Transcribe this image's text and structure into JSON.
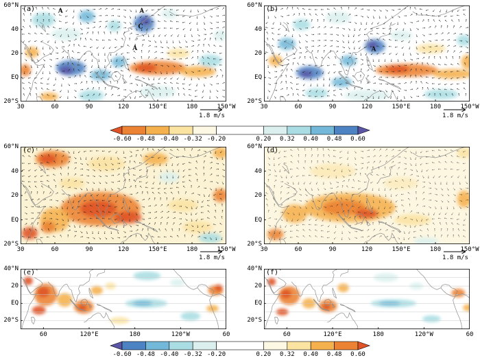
{
  "figure": {
    "scale_label": "1.8 m/s",
    "background": "#ffffff"
  },
  "chart_data": {
    "type": "heatmap",
    "title": "",
    "description": "Six-panel (a-f) correlation/regression maps over the Indo-Pacific: shaded anomalies with wind-vector overlays (a-d), SST-type shading (e-f), and two diverging colorbars",
    "legend_position": "horizontal colorbars below panel rows",
    "grid": "latitude lines on panels e and f",
    "axes": {
      "wide": {
        "lon0": 30,
        "lon1": 210,
        "lat0": -20,
        "lat1": 60,
        "x_ticks": [
          {
            "v": 30,
            "l": "30"
          },
          {
            "v": 60,
            "l": "60"
          },
          {
            "v": 90,
            "l": "90"
          },
          {
            "v": 120,
            "l": "120"
          },
          {
            "v": 150,
            "l": "150°E"
          },
          {
            "v": 180,
            "l": "180"
          },
          {
            "v": 210,
            "l": "150°W"
          }
        ],
        "y_ticks": [
          {
            "v": 60,
            "l": "60°N"
          },
          {
            "v": 40,
            "l": "40"
          },
          {
            "v": 20,
            "l": "20"
          },
          {
            "v": 0,
            "l": "EQ"
          },
          {
            "v": -20,
            "l": "20°S"
          }
        ]
      },
      "global": {
        "lon0": 30,
        "lon1": 300,
        "lat0": -30,
        "lat1": 40,
        "x_ticks": [
          {
            "v": 60,
            "l": "60"
          },
          {
            "v": 120,
            "l": "120°E"
          },
          {
            "v": 180,
            "l": "180"
          },
          {
            "v": 240,
            "l": "120°W"
          },
          {
            "v": 300,
            "l": "60"
          }
        ],
        "y_ticks": [
          {
            "v": 40,
            "l": "40°N"
          },
          {
            "v": 20,
            "l": "20"
          },
          {
            "v": 0,
            "l": "EQ"
          },
          {
            "v": -20,
            "l": "20°S"
          }
        ]
      }
    },
    "colorbars": [
      {
        "ticks": [
          "-0.60",
          "-0.48",
          "-0.40",
          "-0.32",
          "-0.20",
          "0.20",
          "0.32",
          "0.40",
          "0.48",
          "0.60"
        ],
        "arrow_left": "#df5327",
        "segments": [
          "#ec8233",
          "#f5b14e",
          "#fbe3a2",
          "#fdf8e4",
          "#ffffff",
          "#dbf0ee",
          "#a9dde3",
          "#73b8d8",
          "#4d82c3"
        ],
        "arrow_right": "#5a55a5",
        "weights": [
          1,
          1,
          1,
          1,
          2,
          1,
          1,
          1,
          1
        ]
      },
      {
        "ticks": [
          "-0.60",
          "-0.48",
          "-0.40",
          "-0.32",
          "-0.20",
          "0.20",
          "0.32",
          "0.40",
          "0.48",
          "0.60"
        ],
        "arrow_left": "#5a55a5",
        "segments": [
          "#4d82c3",
          "#73b8d8",
          "#a9dde3",
          "#dbf0ee",
          "#ffffff",
          "#fdf8e4",
          "#fbe3a2",
          "#f5b14e",
          "#ec8233"
        ],
        "arrow_right": "#df5327",
        "weights": [
          1,
          1,
          1,
          1,
          2,
          1,
          1,
          1,
          1
        ]
      }
    ],
    "panels": [
      {
        "id": "a",
        "label": "(a)",
        "axes": "wide",
        "wash": "#ffffff",
        "vectors": true,
        "vop": 0.9,
        "seed": 0.8,
        "annotations": [
          {
            "t": "A",
            "lon": 65,
            "lat": 54
          },
          {
            "t": "A",
            "lon": 136,
            "lat": 54
          },
          {
            "t": "C",
            "lon": 135,
            "lat": 41
          },
          {
            "t": "A",
            "lon": 130,
            "lat": 23
          }
        ],
        "features": [
          [
            50,
            48,
            20,
            12,
            "#a9dde3"
          ],
          [
            88,
            51,
            14,
            10,
            "#73b8d8"
          ],
          [
            70,
            36,
            26,
            10,
            "#dbf0ee"
          ],
          [
            112,
            43,
            12,
            9,
            "#a9dde3"
          ],
          [
            138,
            45,
            18,
            15,
            "#4d82c3"
          ],
          [
            139,
            47,
            9,
            7,
            "#5a55a5"
          ],
          [
            160,
            53,
            14,
            8,
            "#dbf0ee"
          ],
          [
            40,
            21,
            12,
            9,
            "#f5b14e"
          ],
          [
            34,
            6,
            10,
            10,
            "#ec8233"
          ],
          [
            74,
            8,
            26,
            13,
            "#4d82c3"
          ],
          [
            70,
            6,
            12,
            7,
            "#5a55a5"
          ],
          [
            100,
            2,
            18,
            9,
            "#73b8d8"
          ],
          [
            116,
            13,
            13,
            9,
            "#73b8d8"
          ],
          [
            150,
            8,
            50,
            12,
            "#ec8233"
          ],
          [
            140,
            8,
            18,
            7,
            "#df5327"
          ],
          [
            185,
            5,
            32,
            9,
            "#f5b14e"
          ],
          [
            168,
            20,
            20,
            8,
            "#fbe3a2"
          ],
          [
            196,
            14,
            20,
            10,
            "#a9dde3"
          ],
          [
            150,
            -12,
            32,
            10,
            "#dbf0ee"
          ],
          [
            92,
            -15,
            22,
            9,
            "#a9dde3"
          ],
          [
            55,
            -16,
            16,
            7,
            "#f5b14e"
          ],
          [
            205,
            35,
            12,
            9,
            "#dbf0ee"
          ]
        ]
      },
      {
        "id": "b",
        "label": "(b)",
        "axes": "wide",
        "wash": "#ffffff",
        "vectors": true,
        "vop": 0.9,
        "seed": 2.1,
        "annotations": [
          {
            "t": "A",
            "lon": 126,
            "lat": 22
          }
        ],
        "features": [
          [
            95,
            50,
            22,
            10,
            "#dbf0ee"
          ],
          [
            63,
            44,
            15,
            9,
            "#a9dde3"
          ],
          [
            50,
            28,
            15,
            10,
            "#73b8d8"
          ],
          [
            40,
            14,
            12,
            9,
            "#f5b14e"
          ],
          [
            127,
            26,
            18,
            12,
            "#4d82c3"
          ],
          [
            125,
            27,
            9,
            6,
            "#5a55a5"
          ],
          [
            104,
            14,
            14,
            9,
            "#73b8d8"
          ],
          [
            70,
            4,
            24,
            11,
            "#4d82c3"
          ],
          [
            67,
            3,
            11,
            6,
            "#5a55a5"
          ],
          [
            98,
            -4,
            18,
            8,
            "#73b8d8"
          ],
          [
            155,
            6,
            55,
            11,
            "#ec8233"
          ],
          [
            147,
            7,
            20,
            6,
            "#df5327"
          ],
          [
            195,
            3,
            36,
            8,
            "#f5b14e"
          ],
          [
            176,
            24,
            26,
            8,
            "#fbe3a2"
          ],
          [
            205,
            31,
            13,
            9,
            "#a9dde3"
          ],
          [
            120,
            -15,
            40,
            9,
            "#dbf0ee"
          ],
          [
            185,
            -14,
            30,
            8,
            "#a9dde3"
          ],
          [
            76,
            -13,
            20,
            8,
            "#a9dde3"
          ],
          [
            208,
            13,
            11,
            12,
            "#f5b14e"
          ],
          [
            150,
            35,
            20,
            8,
            "#dbf0ee"
          ]
        ]
      },
      {
        "id": "c",
        "label": "(c)",
        "axes": "wide",
        "wash": "#fcf3d4",
        "vectors": true,
        "vop": 0.85,
        "seed": 4.0,
        "annotations": [],
        "features": [
          [
            58,
            50,
            30,
            14,
            "#ec8233"
          ],
          [
            54,
            50,
            15,
            8,
            "#df5327"
          ],
          [
            105,
            46,
            32,
            12,
            "#fbe3a2"
          ],
          [
            148,
            50,
            22,
            10,
            "#f5b14e"
          ],
          [
            205,
            55,
            13,
            9,
            "#f5b14e"
          ],
          [
            205,
            20,
            13,
            11,
            "#ec8233"
          ],
          [
            100,
            9,
            70,
            28,
            "#ec8233"
          ],
          [
            98,
            9,
            32,
            14,
            "#df5327"
          ],
          [
            124,
            2,
            24,
            10,
            "#df5327"
          ],
          [
            60,
            0,
            26,
            20,
            "#f5b14e"
          ],
          [
            54,
            -6,
            13,
            10,
            "#ec8233"
          ],
          [
            38,
            -11,
            14,
            10,
            "#df5327"
          ],
          [
            160,
            35,
            18,
            9,
            "#dbf0ee"
          ],
          [
            185,
            -6,
            26,
            10,
            "#fbe3a2"
          ],
          [
            196,
            -15,
            20,
            8,
            "#a9dde3"
          ],
          [
            75,
            30,
            22,
            9,
            "#fbe3a2"
          ],
          [
            172,
            12,
            26,
            10,
            "#fbe3a2"
          ]
        ]
      },
      {
        "id": "d",
        "label": "(d)",
        "axes": "wide",
        "wash": "#fdf7e2",
        "vectors": true,
        "vop": 0.6,
        "seed": 5.5,
        "annotations": [],
        "features": [
          [
            105,
            10,
            80,
            24,
            "#f5b14e"
          ],
          [
            100,
            10,
            38,
            13,
            "#ec8233"
          ],
          [
            120,
            5,
            20,
            8,
            "#df5327"
          ],
          [
            57,
            5,
            22,
            15,
            "#f5b14e"
          ],
          [
            160,
            0,
            32,
            9,
            "#fbe3a2"
          ],
          [
            205,
            17,
            12,
            14,
            "#f5b14e"
          ],
          [
            205,
            55,
            12,
            9,
            "#fbe3a2"
          ],
          [
            40,
            -12,
            14,
            9,
            "#ec8233"
          ],
          [
            172,
            -18,
            22,
            7,
            "#dbf0ee"
          ],
          [
            90,
            40,
            40,
            12,
            "#fbe3a2",
            0.6
          ],
          [
            150,
            30,
            30,
            10,
            "#fbe3a2",
            0.5
          ]
        ]
      },
      {
        "id": "e",
        "label": "(e)",
        "axes": "global",
        "wash": "#ffffff",
        "vectors": false,
        "grid_lats": [
          30,
          20,
          10,
          0,
          -10,
          -20
        ],
        "annotations": [],
        "features": [
          [
            63,
            10,
            30,
            26,
            "#ec8233"
          ],
          [
            60,
            13,
            16,
            12,
            "#df5327"
          ],
          [
            54,
            -8,
            18,
            10,
            "#df5327"
          ],
          [
            88,
            4,
            20,
            16,
            "#f5b14e"
          ],
          [
            113,
            -4,
            26,
            16,
            "#ec8233"
          ],
          [
            111,
            -5,
            11,
            8,
            "#df5327"
          ],
          [
            130,
            15,
            16,
            10,
            "#f5b14e"
          ],
          [
            195,
            0,
            55,
            10,
            "#a9dde3"
          ],
          [
            190,
            0,
            26,
            6,
            "#73b8d8"
          ],
          [
            196,
            32,
            36,
            10,
            "#a9dde3"
          ],
          [
            253,
            -15,
            26,
            10,
            "#a9dde3"
          ],
          [
            236,
            24,
            20,
            8,
            "#dbf0ee"
          ],
          [
            286,
            15,
            20,
            12,
            "#ec8233"
          ],
          [
            290,
            18,
            10,
            8,
            "#df5327"
          ],
          [
            282,
            -6,
            16,
            8,
            "#f5b14e"
          ],
          [
            40,
            26,
            12,
            10,
            "#df5327"
          ],
          [
            160,
            -20,
            26,
            8,
            "#fbe3a2"
          ],
          [
            148,
            20,
            14,
            8,
            "#fbe3a2"
          ]
        ]
      },
      {
        "id": "f",
        "label": "(f)",
        "axes": "global",
        "wash": "#ffffff",
        "vectors": false,
        "grid_lats": [
          30,
          20,
          10,
          0,
          -10,
          -20
        ],
        "annotations": [],
        "features": [
          [
            63,
            9,
            28,
            22,
            "#ec8233"
          ],
          [
            59,
            11,
            14,
            10,
            "#df5327"
          ],
          [
            54,
            -10,
            16,
            8,
            "#df5327"
          ],
          [
            89,
            0,
            18,
            12,
            "#f5b14e"
          ],
          [
            114,
            -3,
            24,
            15,
            "#ec8233"
          ],
          [
            112,
            -4,
            10,
            7,
            "#df5327"
          ],
          [
            134,
            18,
            15,
            10,
            "#f5b14e"
          ],
          [
            200,
            0,
            60,
            9,
            "#a9dde3"
          ],
          [
            195,
            0,
            28,
            5,
            "#73b8d8"
          ],
          [
            190,
            30,
            32,
            10,
            "#dbf0ee"
          ],
          [
            250,
            -18,
            24,
            8,
            "#a9dde3"
          ],
          [
            285,
            12,
            18,
            10,
            "#ec8233"
          ],
          [
            40,
            25,
            11,
            9,
            "#df5327"
          ],
          [
            298,
            -5,
            14,
            8,
            "#f5b14e"
          ],
          [
            230,
            20,
            18,
            8,
            "#dbf0ee"
          ]
        ]
      }
    ]
  }
}
